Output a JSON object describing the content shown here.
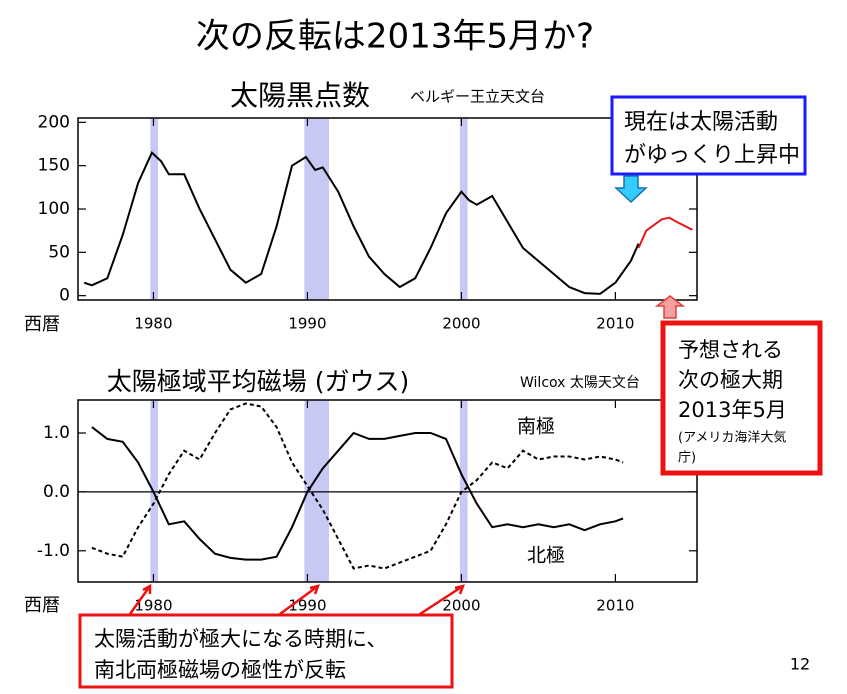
{
  "title": "次の反転は2013年5月か?",
  "page_number": "12",
  "callouts": {
    "current": [
      "現在は太陽活動",
      "がゆっくり上昇中"
    ],
    "forecast": [
      "予想される",
      "次の極大期",
      "2013年5月",
      "(アメリカ海洋大気",
      "庁)"
    ],
    "reversal": [
      "太陽活動が極大になる時期に、",
      "南北両極磁場の極性が反転"
    ]
  },
  "chart_data": [
    {
      "type": "line",
      "title": "太陽黒点数",
      "source": "ベルギー王立天文台",
      "xlabel": "西暦",
      "xlim": [
        1975.1,
        2015.3
      ],
      "xticks": [
        1980,
        1990,
        2000,
        2010
      ],
      "ylim": [
        -5,
        205
      ],
      "yticks": [
        0,
        50,
        100,
        150,
        200
      ],
      "highlight_bands": [
        [
          1979.8,
          1980.3
        ],
        [
          1989.8,
          1991.4
        ],
        [
          1999.9,
          2000.4
        ]
      ],
      "band_color": "#c8c8f4",
      "series": [
        {
          "color": "#000000",
          "dash": false,
          "x": [
            1975.5,
            1976,
            1977,
            1978,
            1979,
            1979.9,
            1980.5,
            1981,
            1982,
            1983,
            1984,
            1985,
            1986,
            1987,
            1988,
            1989,
            1989.9,
            1990.5,
            1991,
            1992,
            1993,
            1994,
            1995,
            1996,
            1997,
            1998,
            1999,
            2000,
            2000.5,
            2001,
            2002,
            2003,
            2004,
            2005,
            2006,
            2007,
            2008,
            2009,
            2010,
            2011,
            2011.5
          ],
          "values": [
            15,
            12,
            20,
            70,
            130,
            165,
            155,
            140,
            140,
            100,
            65,
            30,
            15,
            25,
            80,
            150,
            160,
            145,
            148,
            120,
            80,
            45,
            25,
            10,
            20,
            55,
            95,
            120,
            110,
            105,
            115,
            85,
            55,
            40,
            25,
            10,
            3,
            2,
            15,
            40,
            60
          ]
        },
        {
          "color": "#e41a1c",
          "dash": false,
          "x": [
            2011.5,
            2012,
            2013,
            2013.5,
            2014,
            2015
          ],
          "values": [
            55,
            75,
            88,
            90,
            85,
            76
          ]
        }
      ]
    },
    {
      "type": "line",
      "title": "太陽極域平均磁場 (ガウス)",
      "source": "Wilcox 太陽天文台",
      "xlabel": "西暦",
      "xlim": [
        1975.1,
        2015.3
      ],
      "xticks": [
        1980,
        1990,
        2000,
        2010
      ],
      "ylim": [
        -1.53,
        1.56
      ],
      "yticks": [
        {
          "value": 1,
          "label": "1.0"
        },
        {
          "value": 0,
          "label": "0.0"
        },
        {
          "value": -1,
          "label": "-1.0"
        }
      ],
      "zero_line": true,
      "highlight_bands": [
        [
          1979.8,
          1980.3
        ],
        [
          1989.8,
          1991.4
        ],
        [
          1999.9,
          2000.4
        ]
      ],
      "band_color": "#c8c8f4",
      "series": [
        {
          "name": "北極",
          "color": "#000000",
          "dash": false,
          "x": [
            1976,
            1977,
            1978,
            1979,
            1980,
            1981,
            1982,
            1983,
            1984,
            1985,
            1986,
            1987,
            1988,
            1989,
            1990,
            1991,
            1992,
            1993,
            1994,
            1995,
            1996,
            1997,
            1998,
            1999,
            2000,
            2001,
            2002,
            2003,
            2004,
            2005,
            2006,
            2007,
            2008,
            2009,
            2010,
            2010.5
          ],
          "values": [
            1.1,
            0.9,
            0.85,
            0.5,
            0.0,
            -0.55,
            -0.5,
            -0.8,
            -1.05,
            -1.12,
            -1.15,
            -1.15,
            -1.1,
            -0.6,
            0.0,
            0.4,
            0.7,
            1.0,
            0.9,
            0.9,
            0.95,
            1.0,
            1.0,
            0.9,
            0.3,
            -0.2,
            -0.6,
            -0.55,
            -0.6,
            -0.55,
            -0.6,
            -0.55,
            -0.65,
            -0.55,
            -0.5,
            -0.45
          ]
        },
        {
          "name": "南極",
          "color": "#000000",
          "dash": true,
          "x": [
            1976,
            1977,
            1978,
            1979,
            1980,
            1981,
            1982,
            1983,
            1984,
            1985,
            1986,
            1987,
            1988,
            1989,
            1990,
            1991,
            1992,
            1993,
            1994,
            1995,
            1996,
            1997,
            1998,
            1999,
            2000,
            2001,
            2002,
            2003,
            2004,
            2005,
            2006,
            2007,
            2008,
            2009,
            2010,
            2010.5
          ],
          "values": [
            -0.95,
            -1.05,
            -1.1,
            -0.6,
            -0.2,
            0.3,
            0.7,
            0.55,
            1.0,
            1.4,
            1.5,
            1.45,
            1.1,
            0.5,
            0.1,
            -0.3,
            -0.8,
            -1.3,
            -1.25,
            -1.3,
            -1.2,
            -1.1,
            -1.0,
            -0.55,
            0.0,
            0.2,
            0.5,
            0.4,
            0.7,
            0.55,
            0.6,
            0.6,
            0.55,
            0.6,
            0.55,
            0.5
          ]
        }
      ]
    }
  ]
}
